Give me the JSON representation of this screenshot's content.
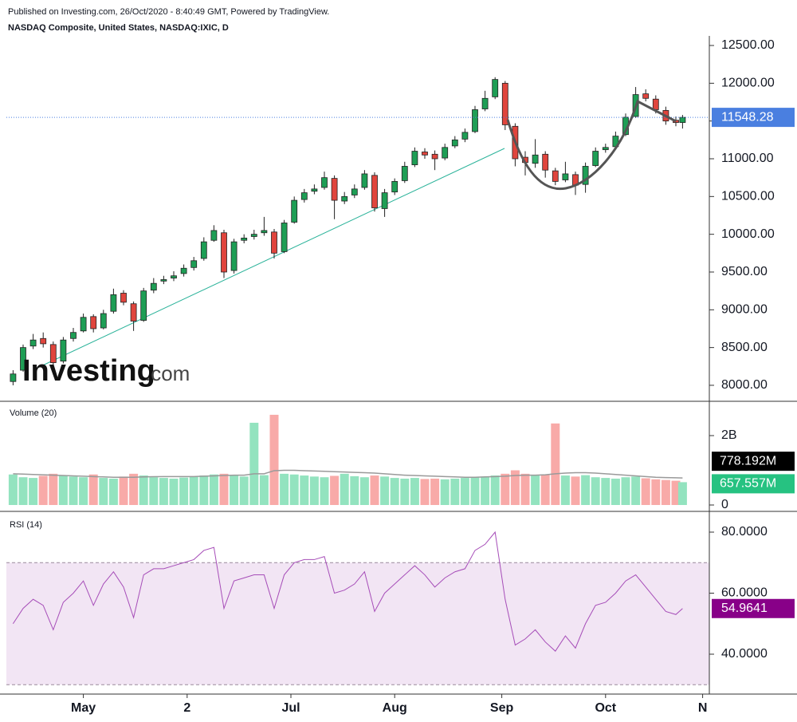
{
  "header": {
    "published": "Published on Investing.com, 26/Oct/2020 - 8:40:49 GMT, Powered by TradingView.",
    "watermark": {
      "brand": "Investing",
      "suffix": ".com"
    }
  },
  "chart_data": [
    {
      "type": "candlestick",
      "title": "NASDAQ Composite, United States, NASDAQ:IXIC, D",
      "x": [
        0,
        3,
        6,
        9,
        12,
        15,
        18,
        21,
        24,
        27,
        30,
        33,
        36,
        39,
        42,
        45,
        48,
        51,
        54,
        57,
        60,
        63,
        66,
        69,
        72,
        75,
        78,
        81,
        84,
        87,
        90,
        93,
        96,
        99,
        102,
        105,
        108,
        111,
        114,
        117,
        120,
        123,
        126,
        129,
        132,
        135,
        138,
        141,
        144,
        147,
        150,
        153,
        156,
        159,
        162,
        165,
        168,
        171,
        174,
        177,
        180,
        183,
        186,
        189,
        192,
        195,
        198,
        200
      ],
      "open": [
        8050,
        8200,
        8520,
        8620,
        8540,
        8320,
        8620,
        8720,
        8910,
        8760,
        8980,
        9220,
        9080,
        8860,
        9260,
        9380,
        9420,
        9480,
        9560,
        9680,
        9920,
        10020,
        9520,
        9920,
        9970,
        10020,
        10030,
        9770,
        10160,
        10460,
        10570,
        10620,
        10740,
        10440,
        10520,
        10620,
        10780,
        10340,
        10560,
        10710,
        10920,
        11090,
        11060,
        11010,
        11170,
        11260,
        11360,
        11660,
        11820,
        12000,
        11430,
        11020,
        10940,
        11060,
        10840,
        10720,
        10790,
        10660,
        10910,
        11120,
        11160,
        11320,
        11560,
        11860,
        11790,
        11640,
        11510,
        11480
      ],
      "high": [
        8200,
        8540,
        8680,
        8700,
        8580,
        8640,
        8760,
        8950,
        8940,
        9000,
        9280,
        9260,
        9110,
        9290,
        9420,
        9450,
        9510,
        9600,
        9700,
        9960,
        10120,
        10060,
        9940,
        10000,
        10060,
        10230,
        10070,
        10190,
        10500,
        10600,
        10660,
        10830,
        10780,
        10560,
        10660,
        10850,
        10820,
        10600,
        10740,
        10960,
        11150,
        11140,
        11110,
        11200,
        11300,
        11400,
        11700,
        11900,
        12080,
        12030,
        11470,
        11100,
        11260,
        11100,
        10880,
        10960,
        10830,
        10950,
        11150,
        11200,
        11360,
        11600,
        11950,
        11920,
        11840,
        11690,
        11560,
        11580
      ],
      "low": [
        8000,
        8180,
        8480,
        8500,
        8260,
        8290,
        8580,
        8700,
        8700,
        8740,
        8950,
        9060,
        8720,
        8840,
        9220,
        9340,
        9380,
        9440,
        9520,
        9650,
        9900,
        9420,
        9480,
        9880,
        9930,
        9980,
        9680,
        9750,
        10140,
        10420,
        10530,
        10590,
        10200,
        10400,
        10480,
        10590,
        10300,
        10230,
        10520,
        10680,
        10890,
        11000,
        10850,
        10980,
        11140,
        11220,
        11340,
        11630,
        11790,
        11380,
        10900,
        10780,
        10880,
        10750,
        10650,
        10690,
        10520,
        10550,
        10890,
        11080,
        11130,
        11300,
        11540,
        11760,
        11600,
        11450,
        11430,
        11400
      ],
      "close": [
        8150,
        8500,
        8600,
        8550,
        8300,
        8600,
        8700,
        8900,
        8750,
        8950,
        9200,
        9100,
        8850,
        9250,
        9350,
        9400,
        9450,
        9550,
        9650,
        9900,
        10050,
        9500,
        9900,
        9950,
        10000,
        10050,
        9750,
        10150,
        10450,
        10550,
        10600,
        10750,
        10450,
        10500,
        10600,
        10800,
        10350,
        10550,
        10700,
        10900,
        11100,
        11050,
        11000,
        11150,
        11250,
        11350,
        11650,
        11800,
        12050,
        11450,
        11000,
        10950,
        11050,
        10850,
        10700,
        10800,
        10650,
        10900,
        11100,
        11150,
        11300,
        11550,
        11850,
        11800,
        11650,
        11500,
        11480,
        11548.28
      ],
      "up_color": "#1e9e55",
      "down_color": "#e0453d",
      "xlim": [
        -2,
        208
      ],
      "xticks": [
        {
          "value": 21,
          "label": "May"
        },
        {
          "value": 52,
          "label": "2"
        },
        {
          "value": 83,
          "label": "Jul"
        },
        {
          "value": 114,
          "label": "Aug"
        },
        {
          "value": 146,
          "label": "Sep"
        },
        {
          "value": 177,
          "label": "Oct"
        },
        {
          "value": 206,
          "label": "N"
        }
      ],
      "ylim": [
        7820,
        12627
      ],
      "yticks": [
        {
          "value": 8000,
          "label": "8000.00"
        },
        {
          "value": 8500,
          "label": "8500.00"
        },
        {
          "value": 9000,
          "label": "9000.00"
        },
        {
          "value": 9500,
          "label": "9500.00"
        },
        {
          "value": 10000,
          "label": "10000.00"
        },
        {
          "value": 10500,
          "label": "10500.00"
        },
        {
          "value": 11000,
          "label": "11000.00"
        },
        {
          "value": 11500,
          "label": "11500.00"
        },
        {
          "value": 12000,
          "label": "12000.00"
        },
        {
          "value": 12500,
          "label": "12500.00"
        }
      ],
      "last_color": "#4a7fe0"
    },
    {
      "type": "bar",
      "title": "Volume (20)",
      "x": [
        0,
        3,
        6,
        9,
        12,
        15,
        18,
        21,
        24,
        27,
        30,
        33,
        36,
        39,
        42,
        45,
        48,
        51,
        54,
        57,
        60,
        63,
        66,
        69,
        72,
        75,
        78,
        81,
        84,
        87,
        90,
        93,
        96,
        99,
        102,
        105,
        108,
        111,
        114,
        117,
        120,
        123,
        126,
        129,
        132,
        135,
        138,
        141,
        144,
        147,
        150,
        153,
        156,
        159,
        162,
        165,
        168,
        171,
        174,
        177,
        180,
        183,
        186,
        189,
        192,
        195,
        198,
        200
      ],
      "values": [
        880,
        800,
        780,
        840,
        900,
        850,
        820,
        800,
        880,
        780,
        760,
        820,
        900,
        850,
        800,
        780,
        760,
        790,
        820,
        850,
        880,
        900,
        870,
        820,
        2370,
        860,
        2600,
        900,
        880,
        850,
        820,
        800,
        840,
        900,
        830,
        800,
        850,
        820,
        780,
        760,
        780,
        750,
        760,
        740,
        760,
        780,
        800,
        820,
        850,
        900,
        1000,
        900,
        860,
        880,
        2350,
        850,
        820,
        860,
        800,
        780,
        760,
        800,
        820,
        770,
        740,
        720,
        700,
        657.557
      ],
      "last_label": "657.557M",
      "ma": [
        900,
        890,
        880,
        870,
        860,
        850,
        840,
        830,
        820,
        810,
        800,
        800,
        800,
        810,
        815,
        820,
        820,
        820,
        820,
        830,
        840,
        850,
        860,
        860,
        900,
        900,
        990,
        1000,
        1000,
        990,
        980,
        970,
        960,
        950,
        940,
        930,
        920,
        900,
        880,
        860,
        850,
        840,
        830,
        820,
        810,
        800,
        800,
        810,
        820,
        830,
        850,
        860,
        860,
        870,
        900,
        920,
        930,
        930,
        920,
        900,
        880,
        860,
        840,
        820,
        800,
        790,
        785,
        778.192
      ],
      "ma_last_label": "778.192M",
      "ma_color": "#9a9a9a",
      "up_color": "#93e3bf",
      "down_color": "#f8aaa8",
      "last_color": "#26c281",
      "ylim": [
        0,
        2943
      ],
      "yticks": [
        0,
        {
          "value": 2000,
          "label": "2B"
        }
      ]
    },
    {
      "type": "line",
      "title": "RSI (14)",
      "x": [
        0,
        3,
        6,
        9,
        12,
        15,
        18,
        21,
        24,
        27,
        30,
        33,
        36,
        39,
        42,
        45,
        48,
        51,
        54,
        57,
        60,
        63,
        66,
        69,
        72,
        75,
        78,
        81,
        84,
        87,
        90,
        93,
        96,
        99,
        102,
        105,
        108,
        111,
        114,
        117,
        120,
        123,
        126,
        129,
        132,
        135,
        138,
        141,
        144,
        147,
        150,
        153,
        156,
        159,
        162,
        165,
        168,
        171,
        174,
        177,
        180,
        183,
        186,
        189,
        192,
        195,
        198,
        200
      ],
      "values": [
        50,
        55,
        58,
        56,
        48,
        57,
        60,
        64,
        56,
        63,
        67,
        62,
        52,
        66,
        68,
        68,
        69,
        70,
        71,
        74,
        75,
        55,
        64,
        65,
        66,
        66,
        55,
        66,
        70,
        71,
        71,
        72,
        60,
        61,
        63,
        67,
        54,
        60,
        63,
        66,
        69,
        66,
        62,
        65,
        67,
        68,
        74,
        76,
        80,
        58,
        43,
        45,
        48,
        44,
        41,
        46,
        42,
        50,
        56,
        57,
        60,
        64,
        66,
        62,
        58,
        54,
        53,
        54.9641
      ],
      "color": "#a64db8",
      "band": [
        30,
        70
      ],
      "band_color": "#f2e5f4",
      "last_color": "#880088",
      "ylim": [
        26.93,
        85.75
      ],
      "yticks": [
        {
          "value": 40,
          "label": "40.0000"
        },
        {
          "value": 60,
          "label": "60.0000"
        },
        {
          "value": 80,
          "label": "80.0000"
        }
      ]
    }
  ]
}
